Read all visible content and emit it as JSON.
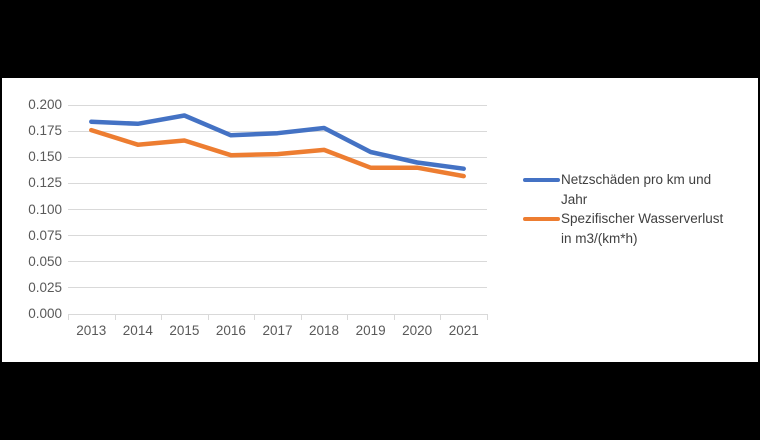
{
  "colors": {
    "background": "#000000",
    "panel": "#ffffff",
    "gridline": "#d9d9d9",
    "axis": "#d9d9d9",
    "tick_label": "#595959",
    "legend_text": "#404040",
    "series_blue": "#4472c4",
    "series_orange": "#ed7d31"
  },
  "chart_data": {
    "type": "line",
    "title": "",
    "xlabel": "",
    "ylabel": "",
    "categories": [
      "2013",
      "2014",
      "2015",
      "2016",
      "2017",
      "2018",
      "2019",
      "2020",
      "2021"
    ],
    "series": [
      {
        "name": "Netzschäden pro km und Jahr",
        "color": "#4472c4",
        "values": [
          0.184,
          0.182,
          0.19,
          0.171,
          0.173,
          0.178,
          0.155,
          0.145,
          0.139
        ]
      },
      {
        "name": "Spezifischer Wasserverlust in m3/(km*h)",
        "color": "#ed7d31",
        "values": [
          0.176,
          0.162,
          0.166,
          0.152,
          0.153,
          0.157,
          0.14,
          0.14,
          0.132
        ]
      }
    ],
    "ylim": [
      0.0,
      0.2
    ],
    "ytick_step": 0.025,
    "ytick_labels": [
      "0.200",
      "0.175",
      "0.150",
      "0.125",
      "0.100",
      "0.075",
      "0.050",
      "0.025",
      "0.000"
    ],
    "grid": true,
    "legend_position": "right",
    "legend": [
      {
        "lines": [
          "Netzschäden pro km und",
          "Jahr"
        ],
        "color": "#4472c4"
      },
      {
        "lines": [
          "Spezifischer Wasserverlust",
          "in m3/(km*h)"
        ],
        "color": "#ed7d31"
      }
    ]
  }
}
